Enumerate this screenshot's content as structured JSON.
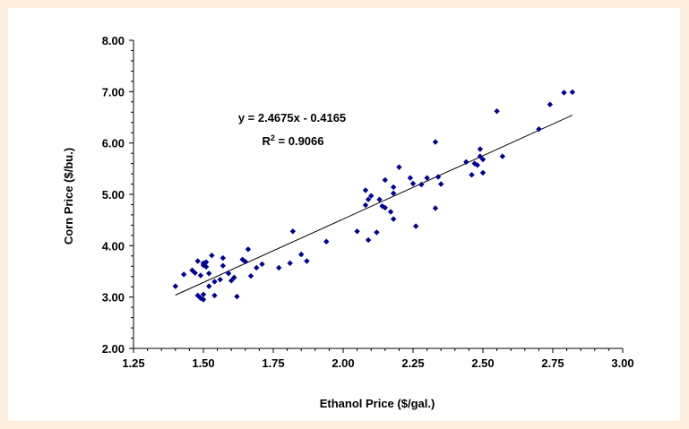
{
  "chart_data": {
    "type": "scatter",
    "title": "",
    "xlabel": "Ethanol Price ($/gal.)",
    "ylabel": "Corn Price ($/bu.)",
    "xlim": [
      1.25,
      3.0
    ],
    "ylim": [
      2.0,
      8.0
    ],
    "x_ticks": [
      "1.25",
      "1.50",
      "1.75",
      "2.00",
      "2.25",
      "2.50",
      "2.75",
      "3.00"
    ],
    "y_ticks": [
      "2.00",
      "3.00",
      "4.00",
      "5.00",
      "6.00",
      "7.00",
      "8.00"
    ],
    "grid": false,
    "point_color": "#00008b",
    "trendline": {
      "slope": 2.4675,
      "intercept": -0.4165,
      "x_range": [
        1.4,
        2.82
      ]
    },
    "annotations": {
      "equation": "y = 2.4675x - 0.4165",
      "r2_prefix": "R",
      "r2_sup": "2",
      "r2_value": " = 0.9066"
    },
    "series": [
      {
        "values": [
          [
            1.4,
            3.21
          ],
          [
            1.43,
            3.44
          ],
          [
            1.46,
            3.52
          ],
          [
            1.47,
            3.47
          ],
          [
            1.48,
            3.03
          ],
          [
            1.48,
            3.7
          ],
          [
            1.49,
            2.98
          ],
          [
            1.49,
            3.42
          ],
          [
            1.5,
            3.62
          ],
          [
            1.5,
            2.95
          ],
          [
            1.5,
            3.66
          ],
          [
            1.5,
            3.05
          ],
          [
            1.51,
            3.59
          ],
          [
            1.51,
            3.68
          ],
          [
            1.52,
            3.46
          ],
          [
            1.52,
            3.21
          ],
          [
            1.53,
            3.81
          ],
          [
            1.54,
            3.3
          ],
          [
            1.54,
            3.03
          ],
          [
            1.56,
            3.34
          ],
          [
            1.57,
            3.76
          ],
          [
            1.57,
            3.61
          ],
          [
            1.59,
            3.46
          ],
          [
            1.6,
            3.32
          ],
          [
            1.61,
            3.38
          ],
          [
            1.62,
            3.01
          ],
          [
            1.64,
            3.73
          ],
          [
            1.65,
            3.69
          ],
          [
            1.66,
            3.93
          ],
          [
            1.67,
            3.41
          ],
          [
            1.69,
            3.57
          ],
          [
            1.71,
            3.64
          ],
          [
            1.77,
            3.57
          ],
          [
            1.81,
            3.66
          ],
          [
            1.82,
            4.28
          ],
          [
            1.85,
            3.83
          ],
          [
            1.87,
            3.7
          ],
          [
            1.94,
            4.08
          ],
          [
            2.05,
            4.28
          ],
          [
            2.08,
            4.79
          ],
          [
            2.08,
            5.08
          ],
          [
            2.09,
            4.9
          ],
          [
            2.09,
            4.11
          ],
          [
            2.1,
            4.97
          ],
          [
            2.12,
            4.26
          ],
          [
            2.13,
            4.9
          ],
          [
            2.14,
            4.77
          ],
          [
            2.15,
            5.28
          ],
          [
            2.15,
            4.74
          ],
          [
            2.17,
            4.66
          ],
          [
            2.18,
            4.52
          ],
          [
            2.18,
            5.14
          ],
          [
            2.18,
            5.02
          ],
          [
            2.2,
            5.53
          ],
          [
            2.24,
            5.32
          ],
          [
            2.25,
            5.21
          ],
          [
            2.26,
            4.38
          ],
          [
            2.28,
            5.19
          ],
          [
            2.3,
            5.32
          ],
          [
            2.33,
            6.02
          ],
          [
            2.33,
            4.73
          ],
          [
            2.34,
            5.34
          ],
          [
            2.35,
            5.2
          ],
          [
            2.44,
            5.63
          ],
          [
            2.46,
            5.38
          ],
          [
            2.47,
            5.6
          ],
          [
            2.48,
            5.57
          ],
          [
            2.49,
            5.88
          ],
          [
            2.49,
            5.74
          ],
          [
            2.5,
            5.68
          ],
          [
            2.5,
            5.42
          ],
          [
            2.55,
            6.62
          ],
          [
            2.57,
            5.74
          ],
          [
            2.7,
            6.27
          ],
          [
            2.74,
            6.75
          ],
          [
            2.79,
            6.98
          ],
          [
            2.82,
            6.99
          ]
        ]
      }
    ]
  }
}
